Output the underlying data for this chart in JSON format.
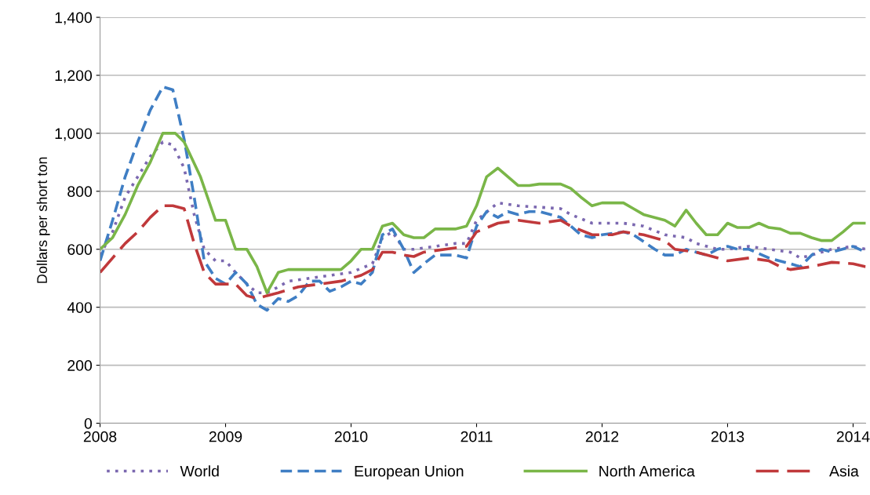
{
  "chart_data": {
    "type": "line",
    "ylabel": "Dollars per short ton",
    "xlim": [
      2008,
      2014.1
    ],
    "xticks": [
      2008,
      2009,
      2010,
      2011,
      2012,
      2013,
      2014
    ],
    "ylim": [
      0,
      1400
    ],
    "yticks": [
      0,
      200,
      400,
      600,
      800,
      {
        "value": 1000,
        "label": "1,000"
      },
      {
        "value": 1200,
        "label": "1,200"
      },
      {
        "value": 1400,
        "label": "1,400"
      }
    ],
    "grid": "y",
    "legend": "bottom",
    "marker": "none",
    "series": [
      {
        "name": "World",
        "color": "#7b68b0",
        "line_style": "dotted",
        "x": [
          2008.0,
          2008.1,
          2008.2,
          2008.3,
          2008.4,
          2008.5,
          2008.58,
          2008.67,
          2008.75,
          2008.83,
          2008.92,
          2009.0,
          2009.08,
          2009.17,
          2009.25,
          2009.33,
          2009.42,
          2009.5,
          2009.67,
          2009.83,
          2010.0,
          2010.17,
          2010.25,
          2010.33,
          2010.42,
          2010.5,
          2010.67,
          2010.83,
          2010.92,
          2011.0,
          2011.17,
          2011.33,
          2011.5,
          2011.67,
          2011.75,
          2011.92,
          2012.0,
          2012.17,
          2012.33,
          2012.5,
          2012.67,
          2012.75,
          2012.92,
          2013.0,
          2013.17,
          2013.33,
          2013.5,
          2013.58,
          2013.67,
          2013.83,
          2014.0,
          2014.1
        ],
        "values": [
          580,
          660,
          780,
          850,
          920,
          970,
          960,
          880,
          720,
          600,
          560,
          560,
          520,
          480,
          450,
          450,
          470,
          490,
          500,
          510,
          520,
          550,
          640,
          660,
          600,
          600,
          610,
          620,
          620,
          700,
          760,
          750,
          745,
          740,
          720,
          690,
          690,
          690,
          680,
          650,
          640,
          620,
          600,
          600,
          610,
          600,
          590,
          570,
          580,
          600,
          610,
          600
        ]
      },
      {
        "name": "European Union",
        "color": "#3f7ec4",
        "line_style": "dashed",
        "x": [
          2008.0,
          2008.1,
          2008.2,
          2008.3,
          2008.4,
          2008.5,
          2008.58,
          2008.67,
          2008.75,
          2008.83,
          2008.92,
          2009.0,
          2009.08,
          2009.17,
          2009.25,
          2009.33,
          2009.42,
          2009.5,
          2009.58,
          2009.67,
          2009.75,
          2009.83,
          2009.92,
          2010.0,
          2010.08,
          2010.17,
          2010.25,
          2010.33,
          2010.42,
          2010.5,
          2010.58,
          2010.67,
          2010.83,
          2010.92,
          2011.0,
          2011.08,
          2011.17,
          2011.25,
          2011.33,
          2011.42,
          2011.5,
          2011.67,
          2011.75,
          2011.83,
          2011.92,
          2012.0,
          2012.17,
          2012.25,
          2012.42,
          2012.5,
          2012.58,
          2012.67,
          2012.75,
          2012.83,
          2012.92,
          2013.0,
          2013.08,
          2013.17,
          2013.33,
          2013.5,
          2013.58,
          2013.67,
          2013.75,
          2013.83,
          2014.0,
          2014.1
        ],
        "values": [
          560,
          700,
          850,
          970,
          1080,
          1160,
          1150,
          980,
          780,
          560,
          500,
          480,
          520,
          480,
          410,
          390,
          430,
          420,
          440,
          490,
          490,
          455,
          470,
          490,
          480,
          520,
          650,
          670,
          600,
          520,
          550,
          580,
          580,
          570,
          680,
          730,
          710,
          730,
          720,
          730,
          730,
          710,
          680,
          650,
          640,
          650,
          660,
          650,
          600,
          580,
          580,
          600,
          590,
          580,
          600,
          610,
          600,
          600,
          570,
          550,
          540,
          580,
          600,
          590,
          610,
          590
        ]
      },
      {
        "name": "North America",
        "color": "#7ab648",
        "line_style": "solid",
        "x": [
          2008.0,
          2008.1,
          2008.2,
          2008.3,
          2008.4,
          2008.5,
          2008.6,
          2008.67,
          2008.8,
          2008.92,
          2009.0,
          2009.08,
          2009.17,
          2009.25,
          2009.33,
          2009.42,
          2009.5,
          2009.67,
          2009.92,
          2010.0,
          2010.08,
          2010.17,
          2010.25,
          2010.33,
          2010.42,
          2010.5,
          2010.58,
          2010.67,
          2010.83,
          2010.92,
          2011.0,
          2011.08,
          2011.17,
          2011.25,
          2011.33,
          2011.42,
          2011.5,
          2011.67,
          2011.75,
          2011.83,
          2011.92,
          2012.0,
          2012.17,
          2012.25,
          2012.33,
          2012.5,
          2012.58,
          2012.67,
          2012.75,
          2012.83,
          2012.92,
          2013.0,
          2013.08,
          2013.17,
          2013.25,
          2013.33,
          2013.42,
          2013.5,
          2013.58,
          2013.67,
          2013.75,
          2013.83,
          2013.92,
          2014.0,
          2014.1
        ],
        "values": [
          600,
          640,
          720,
          820,
          900,
          1000,
          1000,
          970,
          850,
          700,
          700,
          600,
          600,
          540,
          450,
          520,
          530,
          530,
          530,
          560,
          600,
          600,
          680,
          690,
          650,
          640,
          640,
          670,
          670,
          680,
          750,
          850,
          880,
          850,
          820,
          820,
          825,
          825,
          810,
          780,
          750,
          760,
          760,
          740,
          720,
          700,
          680,
          735,
          690,
          650,
          650,
          690,
          675,
          675,
          690,
          675,
          670,
          655,
          655,
          640,
          630,
          630,
          660,
          690,
          690
        ]
      },
      {
        "name": "Asia",
        "color": "#c0393b",
        "line_style": "longdash",
        "x": [
          2008.0,
          2008.1,
          2008.2,
          2008.3,
          2008.4,
          2008.5,
          2008.58,
          2008.67,
          2008.75,
          2008.83,
          2008.92,
          2009.08,
          2009.17,
          2009.25,
          2009.33,
          2009.42,
          2009.58,
          2009.75,
          2009.92,
          2010.08,
          2010.17,
          2010.25,
          2010.33,
          2010.42,
          2010.5,
          2010.58,
          2010.75,
          2010.92,
          2011.0,
          2011.17,
          2011.33,
          2011.5,
          2011.67,
          2011.75,
          2011.92,
          2012.08,
          2012.17,
          2012.33,
          2012.5,
          2012.58,
          2012.75,
          2012.92,
          2013.0,
          2013.17,
          2013.33,
          2013.42,
          2013.5,
          2013.67,
          2013.83,
          2014.0,
          2014.1
        ],
        "values": [
          520,
          570,
          620,
          660,
          710,
          750,
          750,
          740,
          620,
          520,
          480,
          480,
          440,
          430,
          440,
          450,
          470,
          480,
          490,
          510,
          530,
          590,
          590,
          580,
          575,
          590,
          600,
          610,
          660,
          690,
          700,
          690,
          700,
          680,
          650,
          650,
          660,
          650,
          630,
          600,
          590,
          570,
          560,
          570,
          560,
          540,
          530,
          540,
          555,
          550,
          540
        ]
      }
    ]
  }
}
